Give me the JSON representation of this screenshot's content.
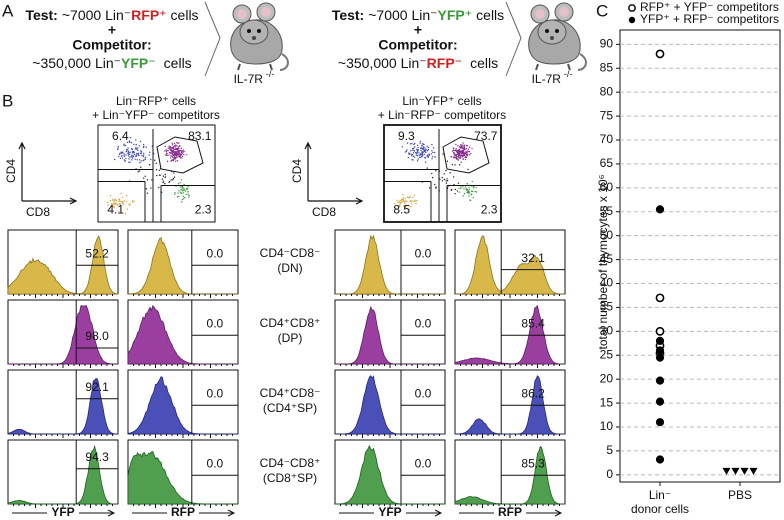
{
  "panel_a": {
    "label": "A",
    "schemes": [
      {
        "test": [
          "Test:",
          "~7000 Lin⁻",
          "RFP⁺",
          "cells"
        ],
        "plus": "+",
        "competitor": "Competitor:",
        "competitor_cells": [
          "~350,000 Lin⁻",
          "YFP⁻",
          "cells"
        ],
        "recipient": [
          "IL-7R",
          "-/-"
        ]
      },
      {
        "test": [
          "Test:",
          "~7000 Lin⁻",
          "YFP⁺",
          "cells"
        ],
        "plus": "+",
        "competitor": "Competitor:",
        "competitor_cells": [
          "~350,000 Lin⁻",
          "RFP⁻",
          "cells"
        ],
        "recipient": [
          "IL-7R",
          "-/-"
        ]
      }
    ]
  },
  "panel_b": {
    "label": "B",
    "titles": [
      [
        "Lin⁻RFP⁺ cells",
        "+ Lin⁻YFP⁻ competitors"
      ],
      [
        "Lin⁻YFP⁺ cells",
        "+ Lin⁻RFP⁻ competitors"
      ]
    ],
    "dot_plots": [
      {
        "y_axis": "CD4",
        "x_axis": "CD8",
        "quadrants": [
          "6.4",
          "83.1",
          "4.1",
          "2.3"
        ]
      },
      {
        "y_axis": "CD4",
        "x_axis": "CD8",
        "quadrants": [
          "9.3",
          "73.7",
          "8.5",
          "2.3"
        ]
      }
    ],
    "populations": [
      [
        "CD4⁻CD8⁻",
        "(DN)"
      ],
      [
        "CD4⁺CD8⁺",
        "(DP)"
      ],
      [
        "CD4⁺CD8⁻",
        "(CD4⁺SP)"
      ],
      [
        "CD4⁻CD8⁺",
        "(CD8⁺SP)"
      ]
    ],
    "histograms": [
      {
        "columns": [
          {
            "axis": "YFP",
            "values": [
              "52.2",
              "98.0",
              "92.1",
              "94.3"
            ]
          },
          {
            "axis": "RFP",
            "values": [
              "0.0",
              "0.0",
              "0.0",
              "0.0"
            ]
          }
        ]
      },
      {
        "columns": [
          {
            "axis": "YFP",
            "values": [
              "0.0",
              "0.0",
              "0.0",
              "0.0"
            ]
          },
          {
            "axis": "RFP",
            "values": [
              "32.1",
              "85.4",
              "86.2",
              "85.3"
            ]
          }
        ]
      }
    ]
  },
  "panel_c": {
    "label": "C"
  },
  "chart_data": {
    "type": "strip",
    "y_label": "total number of thymocytes x 10⁶",
    "categories": [
      [
        "Lin⁻",
        "donor cells"
      ],
      [
        "PBS"
      ]
    ],
    "ylim": [
      -1.5,
      93
    ],
    "yticks": [
      0,
      5,
      10,
      15,
      20,
      25,
      30,
      35,
      40,
      45,
      50,
      55,
      60,
      65,
      70,
      75,
      80,
      85,
      90
    ],
    "grid": true,
    "series": [
      {
        "name": "RFP⁺ + YFP⁻ competitors",
        "marker": "open-circle",
        "color": "#000000",
        "category": 0,
        "values": [
          88,
          37,
          30,
          27,
          25.5
        ]
      },
      {
        "name": "YFP⁺ + RFP⁻ competitors",
        "marker": "filled-circle",
        "color": "#000000",
        "category": 0,
        "values": [
          55.5,
          28,
          26,
          24.5,
          19.7,
          15.3,
          11,
          3.2
        ]
      },
      {
        "marker": "triangle",
        "color": "#000000",
        "category": 1,
        "values": [
          0,
          0,
          0,
          0
        ]
      }
    ]
  }
}
